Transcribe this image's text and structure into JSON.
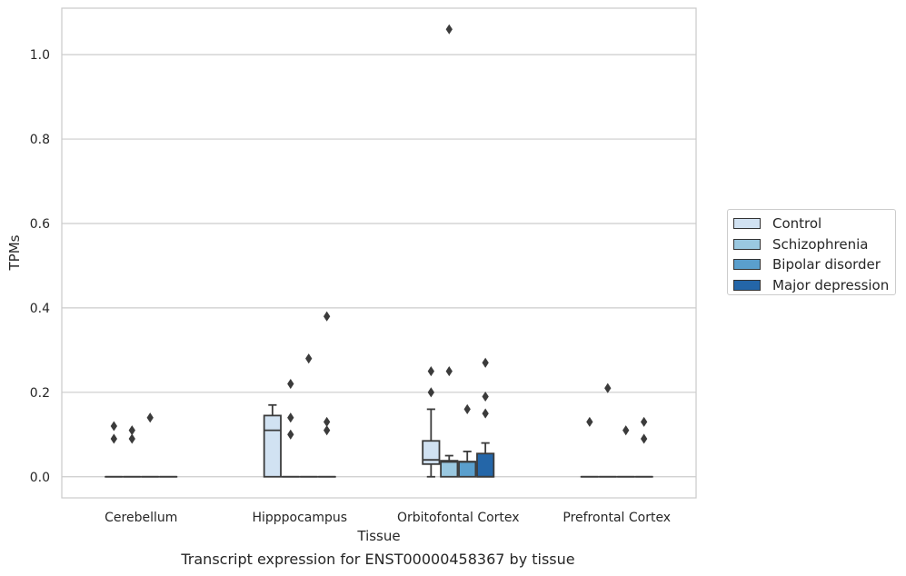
{
  "chart_data": {
    "type": "box",
    "xlabel": "Tissue",
    "ylabel": "TPMs",
    "caption": "Transcript expression for ENST00000458367 by tissue",
    "ylim": [
      -0.05,
      1.11
    ],
    "yticks": [
      0.0,
      0.2,
      0.4,
      0.6,
      0.8,
      1.0
    ],
    "ytick_labels": [
      "0.0",
      "0.2",
      "0.4",
      "0.6",
      "0.8",
      "1.0"
    ],
    "grid": "horizontal",
    "legend_position": "right",
    "categories": [
      "Cerebellum",
      "Hipppocampus",
      "Orbitofontal Cortex",
      "Prefrontal Cortex"
    ],
    "series": [
      {
        "name": "Control",
        "color": "#d1e2f2",
        "boxes": [
          {
            "q1": 0,
            "median": 0,
            "q3": 0,
            "whisker_low": 0,
            "whisker_high": 0,
            "outliers": [
              0.12,
              0.09
            ]
          },
          {
            "q1": 0,
            "median": 0.11,
            "q3": 0.145,
            "whisker_low": 0,
            "whisker_high": 0.17,
            "outliers": []
          },
          {
            "q1": 0.03,
            "median": 0.04,
            "q3": 0.085,
            "whisker_low": 0,
            "whisker_high": 0.16,
            "outliers": [
              0.25,
              0.2
            ]
          },
          {
            "q1": 0,
            "median": 0,
            "q3": 0,
            "whisker_low": 0,
            "whisker_high": 0,
            "outliers": [
              0.13
            ]
          }
        ]
      },
      {
        "name": "Schizophrenia",
        "color": "#9ac8e0",
        "boxes": [
          {
            "q1": 0,
            "median": 0,
            "q3": 0,
            "whisker_low": 0,
            "whisker_high": 0,
            "outliers": [
              0.11,
              0.09
            ]
          },
          {
            "q1": 0,
            "median": 0,
            "q3": 0,
            "whisker_low": 0,
            "whisker_high": 0,
            "outliers": [
              0.22,
              0.14,
              0.1
            ]
          },
          {
            "q1": 0,
            "median": 0.035,
            "q3": 0.038,
            "whisker_low": 0,
            "whisker_high": 0.05,
            "outliers": [
              0.25,
              1.06
            ]
          },
          {
            "q1": 0,
            "median": 0,
            "q3": 0,
            "whisker_low": 0,
            "whisker_high": 0,
            "outliers": [
              0.21
            ]
          }
        ]
      },
      {
        "name": "Bipolar disorder",
        "color": "#5a9fcd",
        "boxes": [
          {
            "q1": 0,
            "median": 0,
            "q3": 0,
            "whisker_low": 0,
            "whisker_high": 0,
            "outliers": [
              0.14
            ]
          },
          {
            "q1": 0,
            "median": 0,
            "q3": 0,
            "whisker_low": 0,
            "whisker_high": 0,
            "outliers": [
              0.28
            ]
          },
          {
            "q1": 0,
            "median": 0.035,
            "q3": 0.036,
            "whisker_low": 0,
            "whisker_high": 0.06,
            "outliers": [
              0.16
            ]
          },
          {
            "q1": 0,
            "median": 0,
            "q3": 0,
            "whisker_low": 0,
            "whisker_high": 0,
            "outliers": [
              0.11
            ]
          }
        ]
      },
      {
        "name": "Major depression",
        "color": "#2466a8",
        "boxes": [
          {
            "q1": 0,
            "median": 0,
            "q3": 0,
            "whisker_low": 0,
            "whisker_high": 0,
            "outliers": []
          },
          {
            "q1": 0,
            "median": 0,
            "q3": 0,
            "whisker_low": 0,
            "whisker_high": 0,
            "outliers": [
              0.38,
              0.13,
              0.11
            ]
          },
          {
            "q1": 0,
            "median": 0,
            "q3": 0.055,
            "whisker_low": 0,
            "whisker_high": 0.08,
            "outliers": [
              0.27,
              0.19,
              0.15
            ]
          },
          {
            "q1": 0,
            "median": 0,
            "q3": 0,
            "whisker_low": 0,
            "whisker_high": 0,
            "outliers": [
              0.13,
              0.09
            ]
          }
        ]
      }
    ]
  }
}
